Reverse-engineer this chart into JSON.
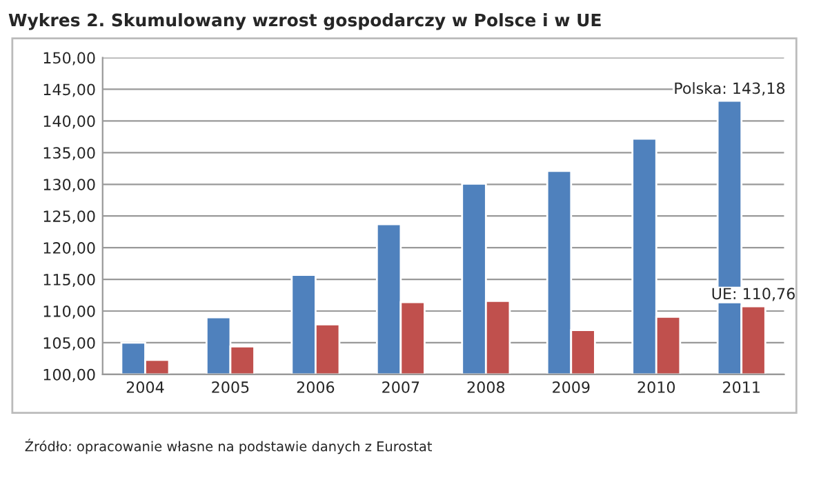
{
  "chart_data": {
    "type": "bar",
    "title": "Wykres 2. Skumulowany wzrost gospodarczy w Polsce i w UE",
    "categories": [
      "2004",
      "2005",
      "2006",
      "2007",
      "2008",
      "2009",
      "2010",
      "2011"
    ],
    "series": [
      {
        "color": "#4f81bd",
        "values": [
          105.0,
          109.0,
          115.7,
          123.7,
          130.1,
          132.1,
          137.2,
          143.18
        ],
        "value_labels": [
          null,
          null,
          null,
          null,
          null,
          null,
          null,
          "Polska: 143,18"
        ]
      },
      {
        "color": "#c0504d",
        "values": [
          102.3,
          104.4,
          107.9,
          111.4,
          111.6,
          107.0,
          109.1,
          110.76
        ],
        "value_labels": [
          null,
          null,
          null,
          null,
          null,
          null,
          null,
          "UE: 110,76"
        ]
      }
    ],
    "ylim": [
      100,
      150
    ],
    "yticks": [
      {
        "value": 100,
        "label": "100,00"
      },
      {
        "value": 105,
        "label": "105,00"
      },
      {
        "value": 110,
        "label": "110,00"
      },
      {
        "value": 115,
        "label": "115,00"
      },
      {
        "value": 120,
        "label": "120,00"
      },
      {
        "value": 125,
        "label": "125,00"
      },
      {
        "value": 130,
        "label": "130,00"
      },
      {
        "value": 135,
        "label": "135,00"
      },
      {
        "value": 140,
        "label": "140,00"
      },
      {
        "value": 145,
        "label": "145,00"
      },
      {
        "value": 150,
        "label": "150,00"
      }
    ],
    "grid": "y",
    "legend": false,
    "annotations": [
      "Źródło: opracowanie własne na podstawie danych z Eurostat"
    ]
  }
}
